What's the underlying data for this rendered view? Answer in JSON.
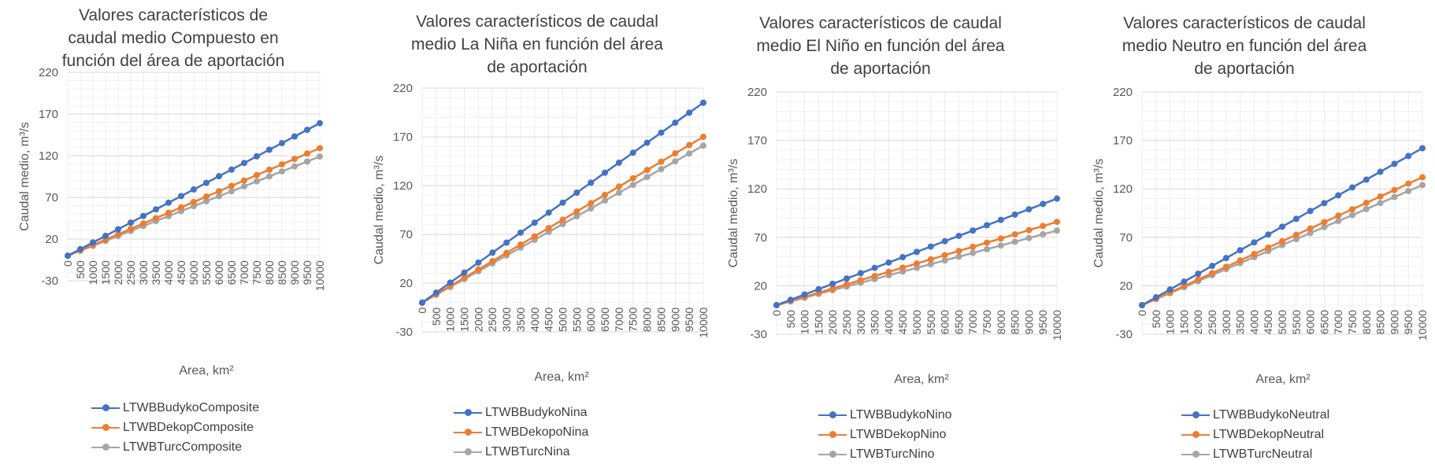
{
  "chart_data": [
    {
      "type": "line",
      "title": "Valores característicos de caudal medio Compuesto en función del área de aportación",
      "xlabel": "Area, km²",
      "ylabel": "Caudal medio, m³/s",
      "ylim": [
        -30,
        220
      ],
      "yticks": [
        -30,
        20,
        70,
        120,
        170,
        220
      ],
      "grid": true,
      "legend_position": "bottom",
      "x": [
        0,
        500,
        1000,
        1500,
        2000,
        2500,
        3000,
        3500,
        4000,
        4500,
        5000,
        5500,
        6000,
        6500,
        7000,
        7500,
        8000,
        8500,
        9000,
        9500,
        10000
      ],
      "series": [
        {
          "name": "LTWBBudykoComposite",
          "color": "#4472C4",
          "values": [
            0,
            7.95,
            15.9,
            23.85,
            31.8,
            39.75,
            47.7,
            55.65,
            63.6,
            71.55,
            79.5,
            87.45,
            95.4,
            103.35,
            111.3,
            119.25,
            127.2,
            135.15,
            143.1,
            151.05,
            159
          ]
        },
        {
          "name": "LTWBDekopComposite",
          "color": "#ED7D31",
          "values": [
            0,
            6.45,
            12.9,
            19.35,
            25.8,
            32.25,
            38.7,
            45.15,
            51.6,
            58.05,
            64.5,
            70.95,
            77.4,
            83.85,
            90.3,
            96.75,
            103.2,
            109.65,
            116.1,
            122.55,
            129
          ]
        },
        {
          "name": "LTWBTurcComposite",
          "color": "#A5A5A5",
          "values": [
            0,
            5.95,
            11.9,
            17.85,
            23.8,
            29.75,
            35.7,
            41.65,
            47.6,
            53.55,
            59.5,
            65.45,
            71.4,
            77.35,
            83.3,
            89.25,
            95.2,
            101.15,
            107.1,
            113.05,
            119
          ]
        }
      ]
    },
    {
      "type": "line",
      "title": "Valores característicos de caudal medio La Niña en función del área de aportación",
      "xlabel": "Area, km²",
      "ylabel": "Caudal medio, m³/s",
      "ylim": [
        -30,
        220
      ],
      "yticks": [
        -30,
        20,
        70,
        120,
        170,
        220
      ],
      "grid": true,
      "legend_position": "bottom",
      "x": [
        0,
        500,
        1000,
        1500,
        2000,
        2500,
        3000,
        3500,
        4000,
        4500,
        5000,
        5500,
        6000,
        6500,
        7000,
        7500,
        8000,
        8500,
        9000,
        9500,
        10000
      ],
      "series": [
        {
          "name": "LTWBBudykoNina",
          "color": "#4472C4",
          "values": [
            0,
            10.25,
            20.5,
            30.75,
            41,
            51.25,
            61.5,
            71.75,
            82,
            92.25,
            102.5,
            112.75,
            123,
            133.25,
            143.5,
            153.75,
            164,
            174.25,
            184.5,
            194.75,
            205
          ]
        },
        {
          "name": "LTWBDekopoNina",
          "color": "#ED7D31",
          "values": [
            0,
            8.5,
            17,
            25.5,
            34,
            42.5,
            51,
            59.5,
            68,
            76.5,
            85,
            93.5,
            102,
            110.5,
            119,
            127.5,
            136,
            144.5,
            153,
            161.5,
            170
          ]
        },
        {
          "name": "LTWBTurcNina",
          "color": "#A5A5A5",
          "values": [
            0,
            8.05,
            16.1,
            24.15,
            32.2,
            40.25,
            48.3,
            56.35,
            64.4,
            72.45,
            80.5,
            88.55,
            96.6,
            104.65,
            112.7,
            120.75,
            128.8,
            136.85,
            144.9,
            152.95,
            161
          ]
        }
      ]
    },
    {
      "type": "line",
      "title": "Valores característicos de caudal medio El Niño en función del área de aportación",
      "xlabel": "Area, km²",
      "ylabel": "Caudal medio, m³/s",
      "ylim": [
        -30,
        220
      ],
      "yticks": [
        -30,
        20,
        70,
        120,
        170,
        220
      ],
      "grid": true,
      "legend_position": "bottom",
      "x": [
        0,
        500,
        1000,
        1500,
        2000,
        2500,
        3000,
        3500,
        4000,
        4500,
        5000,
        5500,
        6000,
        6500,
        7000,
        7500,
        8000,
        8500,
        9000,
        9500,
        10000
      ],
      "series": [
        {
          "name": "LTWBBudykoNino",
          "color": "#4472C4",
          "values": [
            0,
            5.5,
            11,
            16.5,
            22,
            27.5,
            33,
            38.5,
            44,
            49.5,
            55,
            60.5,
            66,
            71.5,
            77,
            82.5,
            88,
            93.5,
            99,
            104.5,
            110
          ]
        },
        {
          "name": "LTWBDekopNino",
          "color": "#ED7D31",
          "values": [
            0,
            4.3,
            8.6,
            12.9,
            17.2,
            21.5,
            25.8,
            30.1,
            34.4,
            38.7,
            43,
            47.3,
            51.6,
            55.9,
            60.2,
            64.5,
            68.8,
            73.1,
            77.4,
            81.7,
            86
          ]
        },
        {
          "name": "LTWBTurcNino",
          "color": "#A5A5A5",
          "values": [
            0,
            3.85,
            7.7,
            11.55,
            15.4,
            19.25,
            23.1,
            26.95,
            30.8,
            34.65,
            38.5,
            42.35,
            46.2,
            50.05,
            53.9,
            57.75,
            61.6,
            65.45,
            69.3,
            73.15,
            77
          ]
        }
      ]
    },
    {
      "type": "line",
      "title": "Valores característicos de caudal medio Neutro en función del área de aportación",
      "xlabel": "Area, km²",
      "ylabel": "Caudal medio, m³/s",
      "ylim": [
        -30,
        220
      ],
      "yticks": [
        -30,
        20,
        70,
        120,
        170,
        220
      ],
      "grid": true,
      "legend_position": "bottom",
      "x": [
        0,
        500,
        1000,
        1500,
        2000,
        2500,
        3000,
        3500,
        4000,
        4500,
        5000,
        5500,
        6000,
        6500,
        7000,
        7500,
        8000,
        8500,
        9000,
        9500,
        10000
      ],
      "series": [
        {
          "name": "LTWBBudykoNeutral",
          "color": "#4472C4",
          "values": [
            0,
            8.1,
            16.2,
            24.3,
            32.4,
            40.5,
            48.6,
            56.7,
            64.8,
            72.9,
            81,
            89.1,
            97.2,
            105.3,
            113.4,
            121.5,
            129.6,
            137.7,
            145.8,
            153.9,
            162
          ]
        },
        {
          "name": "LTWBDekopNeutral",
          "color": "#ED7D31",
          "values": [
            0,
            6.6,
            13.2,
            19.8,
            26.4,
            33,
            39.6,
            46.2,
            52.8,
            59.4,
            66,
            72.6,
            79.2,
            85.8,
            92.4,
            99,
            105.6,
            112.2,
            118.8,
            125.4,
            132
          ]
        },
        {
          "name": "LTWBTurcNeutral",
          "color": "#A5A5A5",
          "values": [
            0,
            6.2,
            12.4,
            18.6,
            24.8,
            31,
            37.2,
            43.4,
            49.6,
            55.8,
            62,
            68.2,
            74.4,
            80.6,
            86.8,
            93,
            99.2,
            105.4,
            111.6,
            117.8,
            124
          ]
        }
      ]
    }
  ]
}
